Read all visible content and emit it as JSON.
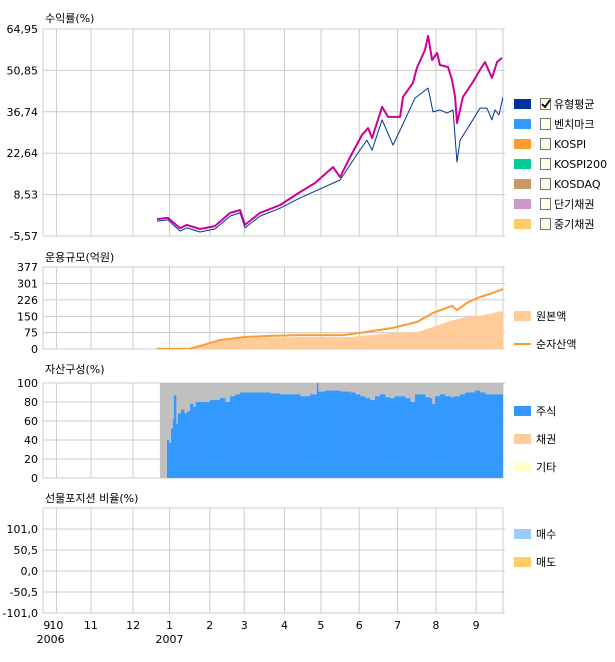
{
  "colors": {
    "fund_line": "#cc0099",
    "type_average": "#003399",
    "benchmark": "#3399ff",
    "kospi": "#ff9933",
    "kospi200": "#00cc99",
    "kosdaq": "#cc9966",
    "short_bond": "#cc99cc",
    "mid_bond": "#ffcc66",
    "principal": "#ffcc99",
    "net_asset": "#ff9933",
    "stock": "#3399ff",
    "bond": "#ffcc99",
    "other": "#ffffcc",
    "asset_gap": "#c0c0c0",
    "buy": "#99ccff",
    "sell": "#ffcc66",
    "grid": "#cccccc"
  },
  "x_axis": {
    "domain": [
      0,
      240
    ],
    "ticks": [
      {
        "label": "9",
        "at": 2
      },
      {
        "label": "10",
        "at": 7
      },
      {
        "label": "11",
        "at": 25
      },
      {
        "label": "12",
        "at": 47
      },
      {
        "label": "1",
        "at": 66
      },
      {
        "label": "2",
        "at": 87
      },
      {
        "label": "3",
        "at": 105
      },
      {
        "label": "4",
        "at": 126
      },
      {
        "label": "5",
        "at": 145
      },
      {
        "label": "6",
        "at": 165
      },
      {
        "label": "7",
        "at": 185
      },
      {
        "label": "8",
        "at": 205
      },
      {
        "label": "9",
        "at": 226
      }
    ],
    "gridlines": [
      7,
      25,
      47,
      66,
      87,
      105,
      126,
      145,
      165,
      185,
      205,
      226
    ],
    "years": [
      {
        "label": "2006",
        "at": 4
      },
      {
        "label": "2007",
        "at": 66
      }
    ]
  },
  "chart_data": [
    {
      "type": "line",
      "title": "수익률(%)",
      "ylim": [
        -5.57,
        64.95
      ],
      "yticks": [
        "64,95",
        "50,85",
        "36,74",
        "22,64",
        "8,53",
        "-5,57"
      ],
      "ytick_values": [
        64.95,
        50.85,
        36.74,
        22.64,
        8.53,
        -5.57
      ],
      "legend": [
        {
          "label": "유형평균",
          "color_key": "type_average",
          "checked": true
        },
        {
          "label": "벤치마크",
          "color_key": "benchmark",
          "checked": false
        },
        {
          "label": "KOSPI",
          "color_key": "kospi",
          "checked": false
        },
        {
          "label": "KOSPI200",
          "color_key": "kospi200",
          "checked": false
        },
        {
          "label": "KOSDAQ",
          "color_key": "kosdaq",
          "checked": false
        },
        {
          "label": "단기채권",
          "color_key": "short_bond",
          "checked": false
        },
        {
          "label": "중기채권",
          "color_key": "mid_bond",
          "checked": false
        }
      ],
      "series": [
        {
          "name": "유형평균",
          "color_key": "type_average",
          "points": [
            [
              59.5,
              -0.5
            ],
            [
              65.2,
              -0.1
            ],
            [
              71.5,
              -3.9
            ],
            [
              75.1,
              -2.8
            ],
            [
              81.9,
              -4.2
            ],
            [
              89.7,
              -3.2
            ],
            [
              97.6,
              1.2
            ],
            [
              102.8,
              2.3
            ],
            [
              105.4,
              -2.8
            ],
            [
              113.2,
              1.2
            ],
            [
              123.7,
              3.9
            ],
            [
              134.1,
              7.4
            ],
            [
              155,
              13.5
            ],
            [
              164.3,
              22.7
            ],
            [
              169,
              27.1
            ],
            [
              171.7,
              23.7
            ],
            [
              176.9,
              34.0
            ],
            [
              182.6,
              25.4
            ],
            [
              186.3,
              30.5
            ],
            [
              194.1,
              41.4
            ],
            [
              200.9,
              44.8
            ],
            [
              203.5,
              36.7
            ],
            [
              207.1,
              37.4
            ],
            [
              210.8,
              36.3
            ],
            [
              213.9,
              37.4
            ],
            [
              216,
              19.6
            ],
            [
              217.6,
              27.1
            ],
            [
              224.3,
              34.0
            ],
            [
              228,
              38.0
            ],
            [
              231.6,
              38.0
            ],
            [
              234.2,
              34.0
            ],
            [
              235.8,
              37.4
            ],
            [
              237.9,
              35.7
            ],
            [
              240,
              41.8
            ]
          ]
        },
        {
          "name": "fund",
          "color_key": "fund_line",
          "points": [
            [
              59.5,
              0.2
            ],
            [
              65.2,
              0.6
            ],
            [
              71.5,
              -2.9
            ],
            [
              75.1,
              -1.8
            ],
            [
              81.9,
              -3.2
            ],
            [
              89.7,
              -2.2
            ],
            [
              97.6,
              2.3
            ],
            [
              102.8,
              3.3
            ],
            [
              105.4,
              -1.8
            ],
            [
              113.2,
              2.3
            ],
            [
              123.7,
              5.0
            ],
            [
              134.1,
              9.4
            ],
            [
              141.9,
              12.5
            ],
            [
              151.3,
              17.9
            ],
            [
              155,
              14.5
            ],
            [
              160.2,
              21.3
            ],
            [
              166.4,
              28.8
            ],
            [
              169.6,
              31.2
            ],
            [
              171.7,
              27.8
            ],
            [
              176.9,
              38.4
            ],
            [
              180,
              35.0
            ],
            [
              186.3,
              35.0
            ],
            [
              187.8,
              41.8
            ],
            [
              193,
              46.6
            ],
            [
              195.1,
              51.7
            ],
            [
              199.3,
              57.8
            ],
            [
              200.9,
              62.6
            ],
            [
              203,
              54.4
            ],
            [
              205.6,
              56.8
            ],
            [
              207.1,
              52.7
            ],
            [
              211.3,
              52.0
            ],
            [
              213.4,
              47.6
            ],
            [
              215,
              41.8
            ],
            [
              216,
              32.9
            ],
            [
              219.1,
              41.8
            ],
            [
              224.3,
              46.9
            ],
            [
              228,
              51.0
            ],
            [
              230.6,
              53.7
            ],
            [
              234.2,
              48.3
            ],
            [
              236.9,
              53.7
            ],
            [
              239.5,
              55.1
            ]
          ]
        }
      ]
    },
    {
      "type": "area",
      "title": "운용규모(억원)",
      "ylim": [
        0,
        377
      ],
      "yticks": [
        "377",
        "301",
        "226",
        "150",
        "75",
        "0"
      ],
      "ytick_values": [
        377,
        301,
        226,
        150,
        75,
        0
      ],
      "legend": [
        {
          "label": "원본액",
          "color_key": "principal",
          "kind": "area"
        },
        {
          "label": "순자산액",
          "color_key": "net_asset",
          "kind": "line"
        }
      ],
      "series": [
        {
          "name": "원본액",
          "color_key": "principal",
          "points": [
            [
              59.5,
              0
            ],
            [
              76.7,
              0
            ],
            [
              81.9,
              10
            ],
            [
              92.3,
              35
            ],
            [
              105.4,
              50
            ],
            [
              118.4,
              53
            ],
            [
              134.1,
              55
            ],
            [
              160.2,
              55
            ],
            [
              182.6,
              74
            ],
            [
              195.1,
              78
            ],
            [
              203.5,
              101
            ],
            [
              212.3,
              129
            ],
            [
              221.2,
              147
            ],
            [
              228,
              152
            ],
            [
              240,
              175
            ]
          ]
        },
        {
          "name": "순자산액",
          "color_key": "net_asset",
          "points": [
            [
              59.5,
              1
            ],
            [
              76.7,
              2
            ],
            [
              81.9,
              14
            ],
            [
              92.3,
              41
            ],
            [
              105.4,
              55
            ],
            [
              118.4,
              60
            ],
            [
              134.1,
              64
            ],
            [
              156.5,
              64
            ],
            [
              165.4,
              74
            ],
            [
              182.6,
              97
            ],
            [
              195.1,
              124
            ],
            [
              203.5,
              166
            ],
            [
              213.4,
              198
            ],
            [
              216,
              179
            ],
            [
              221.2,
              212
            ],
            [
              228,
              239
            ],
            [
              234.7,
              258
            ],
            [
              240,
              276
            ]
          ]
        }
      ]
    },
    {
      "type": "bar",
      "title": "자산구성(%)",
      "ylim": [
        0,
        100
      ],
      "yticks": [
        "100",
        "80",
        "60",
        "40",
        "20",
        "0"
      ],
      "ytick_values": [
        100,
        80,
        60,
        40,
        20,
        0
      ],
      "data_start": 61,
      "legend": [
        {
          "label": "주식",
          "color_key": "stock"
        },
        {
          "label": "채권",
          "color_key": "bond"
        },
        {
          "label": "기타",
          "color_key": "other"
        }
      ],
      "stock_points": [
        [
          64.7,
          40
        ],
        [
          65.7,
          37
        ],
        [
          66.8,
          52
        ],
        [
          67.8,
          62
        ],
        [
          68.3,
          87
        ],
        [
          69.4,
          57
        ],
        [
          70.4,
          68
        ],
        [
          72,
          72
        ],
        [
          73.6,
          68
        ],
        [
          75.1,
          70
        ],
        [
          76.7,
          78
        ],
        [
          78.3,
          75
        ],
        [
          79.8,
          80
        ],
        [
          81.9,
          80
        ],
        [
          84.5,
          80
        ],
        [
          87.1,
          82
        ],
        [
          89.7,
          82
        ],
        [
          92.3,
          84
        ],
        [
          95,
          80
        ],
        [
          97.6,
          86
        ],
        [
          100.2,
          88
        ],
        [
          102.8,
          90
        ],
        [
          108,
          90
        ],
        [
          113.2,
          90
        ],
        [
          118.4,
          89
        ],
        [
          123.6,
          88
        ],
        [
          128.9,
          88
        ],
        [
          134.1,
          86
        ],
        [
          139.3,
          88
        ],
        [
          142.9,
          100
        ],
        [
          143.5,
          91
        ],
        [
          147.1,
          92
        ],
        [
          151.3,
          92
        ],
        [
          154.9,
          91
        ],
        [
          160.2,
          90
        ],
        [
          162.8,
          88
        ],
        [
          165.4,
          86
        ],
        [
          168,
          84
        ],
        [
          170.6,
          82
        ],
        [
          173.2,
          86
        ],
        [
          175.8,
          88
        ],
        [
          178.4,
          85
        ],
        [
          181,
          84
        ],
        [
          183.6,
          86
        ],
        [
          186.3,
          86
        ],
        [
          188.9,
          84
        ],
        [
          191.5,
          80
        ],
        [
          194.1,
          88
        ],
        [
          196.7,
          88
        ],
        [
          199.3,
          85
        ],
        [
          201.9,
          84
        ],
        [
          202.9,
          78
        ],
        [
          204.5,
          86
        ],
        [
          207.1,
          88
        ],
        [
          209.7,
          86
        ],
        [
          212.3,
          85
        ],
        [
          214.9,
          86
        ],
        [
          217.6,
          88
        ],
        [
          220.2,
          90
        ],
        [
          222.8,
          90
        ],
        [
          225.4,
          92
        ],
        [
          228,
          90
        ],
        [
          230.6,
          88
        ],
        [
          233.2,
          88
        ],
        [
          235.8,
          88
        ],
        [
          238.4,
          88
        ],
        [
          240,
          90
        ]
      ]
    },
    {
      "type": "bar",
      "title": "선물포지션 비율(%)",
      "ylim": [
        -101,
        151.5
      ],
      "yticks": [
        "101,0",
        "50,5",
        "0,0",
        "-50,5",
        "-101,0"
      ],
      "ytick_values": [
        101,
        50.5,
        0,
        -50.5,
        -101
      ],
      "legend": [
        {
          "label": "매수",
          "color_key": "buy"
        },
        {
          "label": "매도",
          "color_key": "sell"
        }
      ],
      "series": []
    }
  ]
}
